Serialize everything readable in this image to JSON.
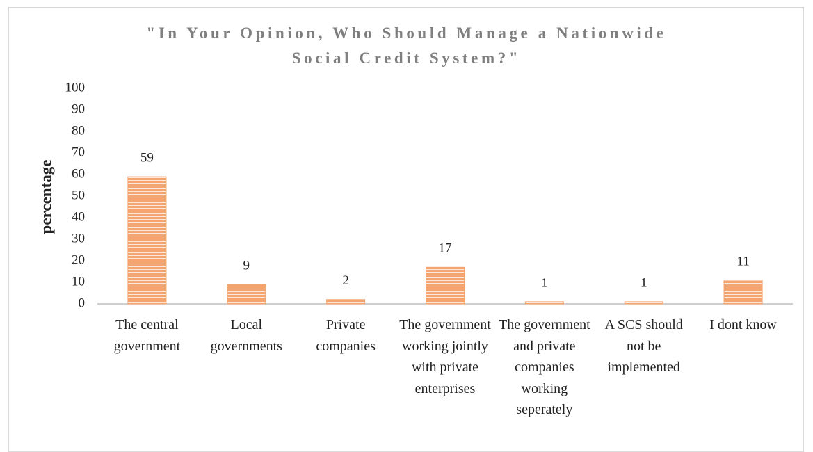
{
  "chart_data": {
    "type": "bar",
    "title": "\"In Your Opinion, Who Should Manage a Nationwide\nSocial Credit System?\"",
    "y_label": "percentage",
    "categories": [
      "The central government",
      "Local governments",
      "Private companies",
      "The government working jointly with private enterprises",
      "The government and private companies working seperately",
      "A SCS should not be implemented",
      "I dont know"
    ],
    "values": [
      59,
      9,
      2,
      17,
      1,
      1,
      11
    ],
    "color": "#f4a46e",
    "ylim": [
      0,
      100
    ],
    "yticks": [
      0,
      10,
      20,
      30,
      40,
      50,
      60,
      70,
      80,
      90,
      100
    ],
    "grid": false
  }
}
